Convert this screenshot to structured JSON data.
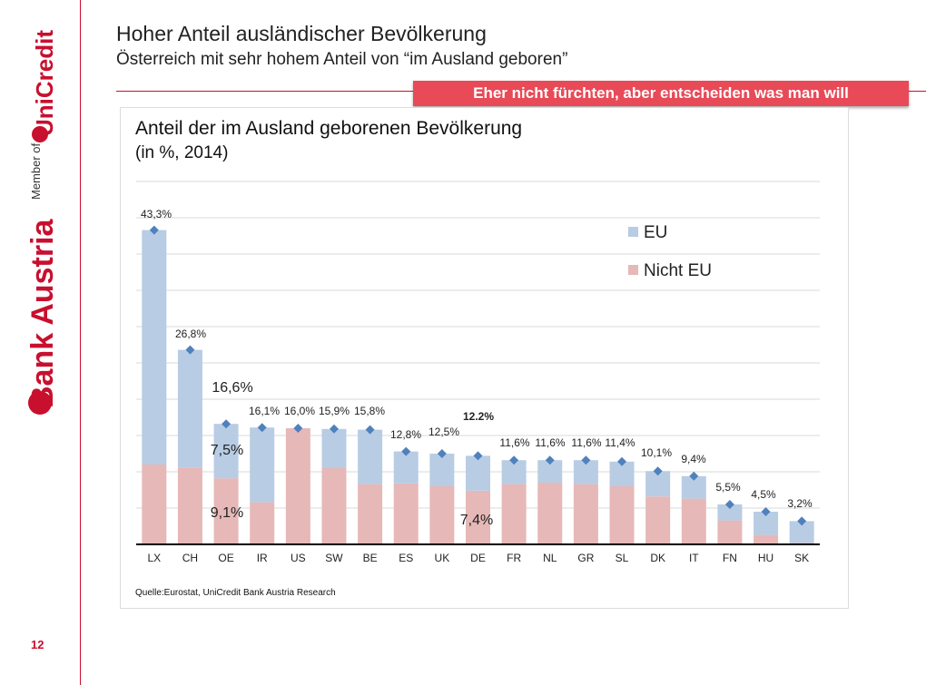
{
  "header": {
    "title": "Hoher Anteil ausländischer Bevölkerung",
    "subtitle": "Österreich mit sehr hohem Anteil von “im Ausland geboren”",
    "banner": "Eher nicht fürchten, aber entscheiden was man will"
  },
  "brand": {
    "member_text": "Member of",
    "group_name": "UniCredit",
    "bank_name": "Bank Austria",
    "accent_color": "#c8102e"
  },
  "page_number": "12",
  "source": "Quelle:Eurostat, UniCredit Bank Austria Research",
  "chart_data": {
    "type": "bar",
    "stacked": true,
    "title": "Anteil der im Ausland geborenen Bevölkerung",
    "subtitle": "(in %, 2014)",
    "categories": [
      "LX",
      "CH",
      "OE",
      "IR",
      "US",
      "SW",
      "BE",
      "ES",
      "UK",
      "DE",
      "FR",
      "NL",
      "GR",
      "SL",
      "DK",
      "IT",
      "FN",
      "HU",
      "SK"
    ],
    "series": [
      {
        "name": "Nicht EU",
        "color": "#e6b8b7",
        "values": [
          11.0,
          10.6,
          9.1,
          5.8,
          16.0,
          10.5,
          8.3,
          8.4,
          8.0,
          7.4,
          8.3,
          8.5,
          8.3,
          8.0,
          6.6,
          6.3,
          3.3,
          1.3,
          0.2
        ]
      },
      {
        "name": "EU",
        "color": "#b8cce4",
        "values": [
          32.3,
          16.2,
          7.5,
          10.3,
          0.0,
          5.4,
          7.5,
          4.4,
          4.5,
          4.8,
          3.3,
          3.1,
          3.3,
          3.4,
          3.5,
          3.1,
          2.2,
          3.2,
          3.0
        ]
      }
    ],
    "totals": [
      43.3,
      26.8,
      16.6,
      16.1,
      16.0,
      15.9,
      15.8,
      12.8,
      12.5,
      12.2,
      11.6,
      11.6,
      11.6,
      11.4,
      10.1,
      9.4,
      5.5,
      4.5,
      3.2
    ],
    "total_labels": [
      "43,3%",
      "26,8%",
      "16,6%",
      "16,1%",
      "16,0%",
      "15,9%",
      "15,8%",
      "12,8%",
      "12,5%",
      "12.2%",
      "11,6%",
      "11,6%",
      "11,6%",
      "11,4%",
      "10,1%",
      "9,4%",
      "5,5%",
      "4,5%",
      "3,2%"
    ],
    "annotations": {
      "oe_eu": "7,5%",
      "oe_non_eu": "9,1%",
      "de_non_eu": "7,4%"
    },
    "marker_color": "#4f81bd",
    "legend": [
      {
        "label": "EU",
        "color": "#b8cce4"
      },
      {
        "label": "Nicht EU",
        "color": "#e6b8b7"
      }
    ],
    "legend_position": "top-right",
    "ylim": [
      0,
      50
    ],
    "grid": true
  }
}
